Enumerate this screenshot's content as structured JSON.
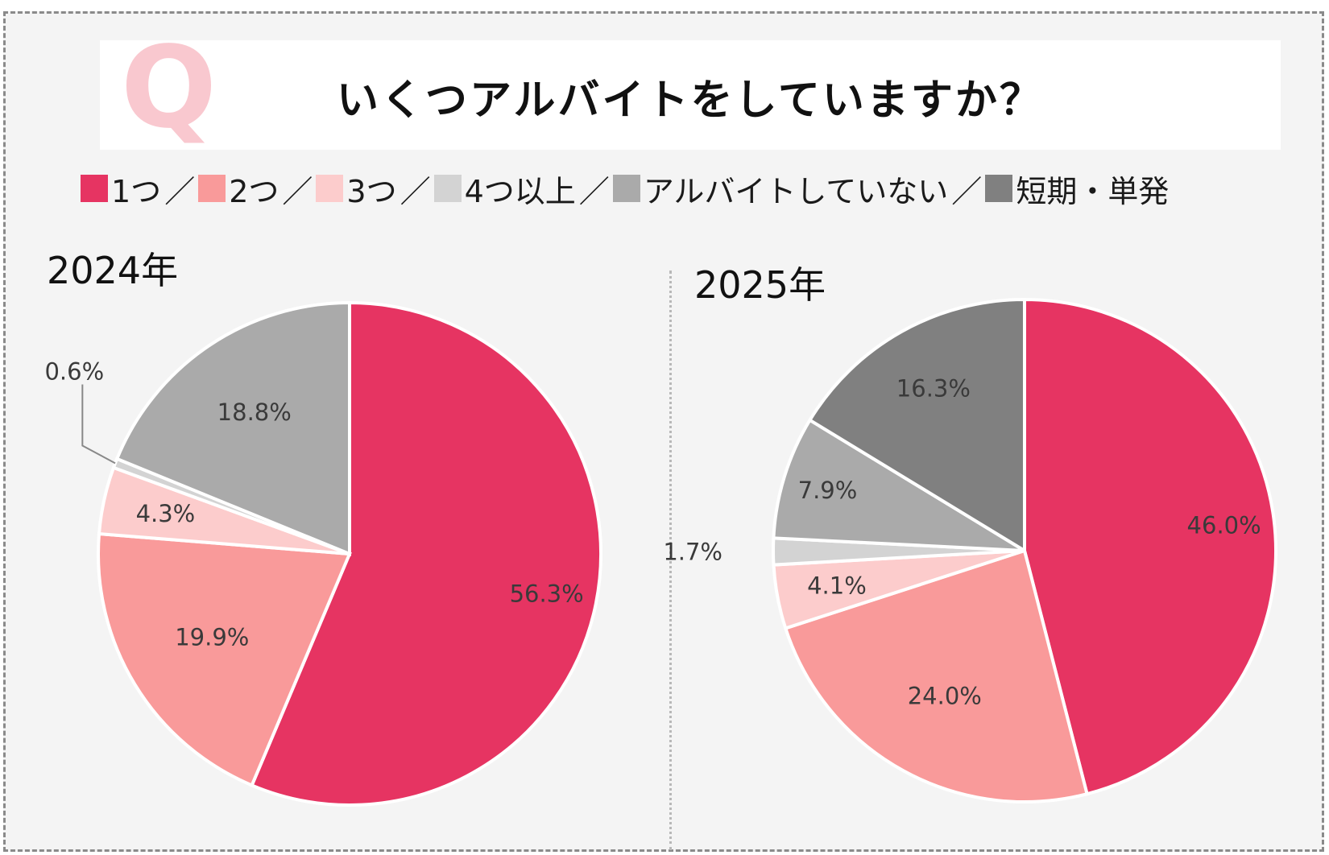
{
  "question": {
    "mark": "Q",
    "text": "いくつアルバイトをしていますか？"
  },
  "legend": [
    {
      "label": "1つ",
      "color": "#e63462"
    },
    {
      "label": "2つ",
      "color": "#f99a9a"
    },
    {
      "label": "3つ",
      "color": "#fccccc"
    },
    {
      "label": "4つ以上",
      "color": "#d3d3d3"
    },
    {
      "label": "アルバイトしていない",
      "color": "#aaaaaa"
    },
    {
      "label": "短期・単発",
      "color": "#808080"
    }
  ],
  "legend_separator": "／",
  "chart_data": [
    {
      "type": "pie",
      "title": "2024年",
      "categories": [
        "1つ",
        "2つ",
        "3つ",
        "4つ以上",
        "アルバイトしていない"
      ],
      "values": [
        56.3,
        19.9,
        4.3,
        0.6,
        18.8
      ],
      "labels": [
        "56.3%",
        "19.9%",
        "4.3%",
        "0.6%",
        "18.8%"
      ],
      "colors": [
        "#e63462",
        "#f99a9a",
        "#fccccc",
        "#d3d3d3",
        "#aaaaaa"
      ],
      "start": "12 o'clock",
      "direction": "clockwise"
    },
    {
      "type": "pie",
      "title": "2025年",
      "categories": [
        "1つ",
        "2つ",
        "3つ",
        "4つ以上",
        "アルバイトしていない",
        "短期・単発"
      ],
      "values": [
        46.0,
        24.0,
        4.1,
        1.7,
        7.9,
        16.3
      ],
      "labels": [
        "46.0%",
        "24.0%",
        "4.1%",
        "1.7%",
        "7.9%",
        "16.3%"
      ],
      "colors": [
        "#e63462",
        "#f99a9a",
        "#fccccc",
        "#d3d3d3",
        "#aaaaaa",
        "#808080"
      ],
      "start": "12 o'clock",
      "direction": "clockwise"
    }
  ]
}
